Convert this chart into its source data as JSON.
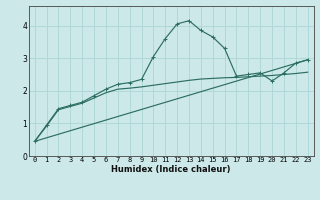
{
  "xlabel": "Humidex (Indice chaleur)",
  "ylabel": "",
  "xlim": [
    -0.5,
    23.5
  ],
  "ylim": [
    0,
    4.6
  ],
  "yticks": [
    0,
    1,
    2,
    3,
    4
  ],
  "xticks": [
    0,
    1,
    2,
    3,
    4,
    5,
    6,
    7,
    8,
    9,
    10,
    11,
    12,
    13,
    14,
    15,
    16,
    17,
    18,
    19,
    20,
    21,
    22,
    23
  ],
  "bg_color": "#cce8e8",
  "line_color": "#2d6e62",
  "grid_color": "#b0d8d8",
  "curve1_x": [
    0,
    1,
    2,
    3,
    4,
    5,
    6,
    7,
    8,
    9,
    10,
    11,
    12,
    13,
    14,
    15,
    16,
    17,
    18,
    19,
    20,
    21,
    22,
    23
  ],
  "curve1_y": [
    0.45,
    0.95,
    1.45,
    1.55,
    1.65,
    1.85,
    2.05,
    2.2,
    2.25,
    2.35,
    3.05,
    3.6,
    4.05,
    4.15,
    3.85,
    3.65,
    3.3,
    2.45,
    2.5,
    2.55,
    2.3,
    2.55,
    2.85,
    2.95
  ],
  "curve2_x": [
    0,
    1,
    2,
    3,
    4,
    5,
    6,
    7,
    8,
    9,
    10,
    11,
    12,
    13,
    14,
    15,
    16,
    17,
    18,
    19,
    20,
    21,
    22,
    23
  ],
  "curve2_y": [
    0.45,
    0.92,
    1.42,
    1.52,
    1.62,
    1.78,
    1.94,
    2.05,
    2.08,
    2.12,
    2.17,
    2.22,
    2.27,
    2.32,
    2.36,
    2.38,
    2.4,
    2.41,
    2.43,
    2.45,
    2.47,
    2.5,
    2.53,
    2.57
  ],
  "curve3_x": [
    0,
    23
  ],
  "curve3_y": [
    0.45,
    2.95
  ]
}
